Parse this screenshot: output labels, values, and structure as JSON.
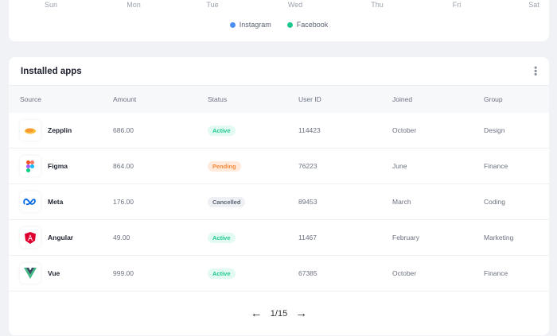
{
  "chart": {
    "x_tick_labels": [
      "Sun",
      "Mon",
      "Tue",
      "Wed",
      "Thu",
      "Fri",
      "Sat"
    ],
    "legend": [
      {
        "label": "Instagram",
        "color": "#4b8ff5"
      },
      {
        "label": "Facebook",
        "color": "#1fc98e"
      }
    ]
  },
  "table": {
    "title": "Installed apps",
    "columns": [
      "Source",
      "Amount",
      "Status",
      "User ID",
      "Joined",
      "Group"
    ],
    "rows": [
      {
        "source": "Zepplin",
        "icon": "zeplin-icon",
        "amount": "686.00",
        "status": "Active",
        "user_id": "114423",
        "joined": "October",
        "group": "Design"
      },
      {
        "source": "Figma",
        "icon": "figma-icon",
        "amount": "864.00",
        "status": "Pending",
        "user_id": "76223",
        "joined": "June",
        "group": "Finance"
      },
      {
        "source": "Meta",
        "icon": "meta-icon",
        "amount": "176.00",
        "status": "Cancelled",
        "user_id": "89453",
        "joined": "March",
        "group": "Coding"
      },
      {
        "source": "Angular",
        "icon": "angular-icon",
        "amount": "49.00",
        "status": "Active",
        "user_id": "11467",
        "joined": "February",
        "group": "Marketing"
      },
      {
        "source": "Vue",
        "icon": "vue-icon",
        "amount": "999.00",
        "status": "Active",
        "user_id": "67385",
        "joined": "October",
        "group": "Finance"
      }
    ],
    "status_colors": {
      "Active": {
        "bg": "#e2faf1",
        "fg": "#1fc98e"
      },
      "Pending": {
        "bg": "#ffeadb",
        "fg": "#f7893b"
      },
      "Cancelled": {
        "bg": "#eef0f4",
        "fg": "#5d6475"
      }
    },
    "pagination": "1/15"
  }
}
